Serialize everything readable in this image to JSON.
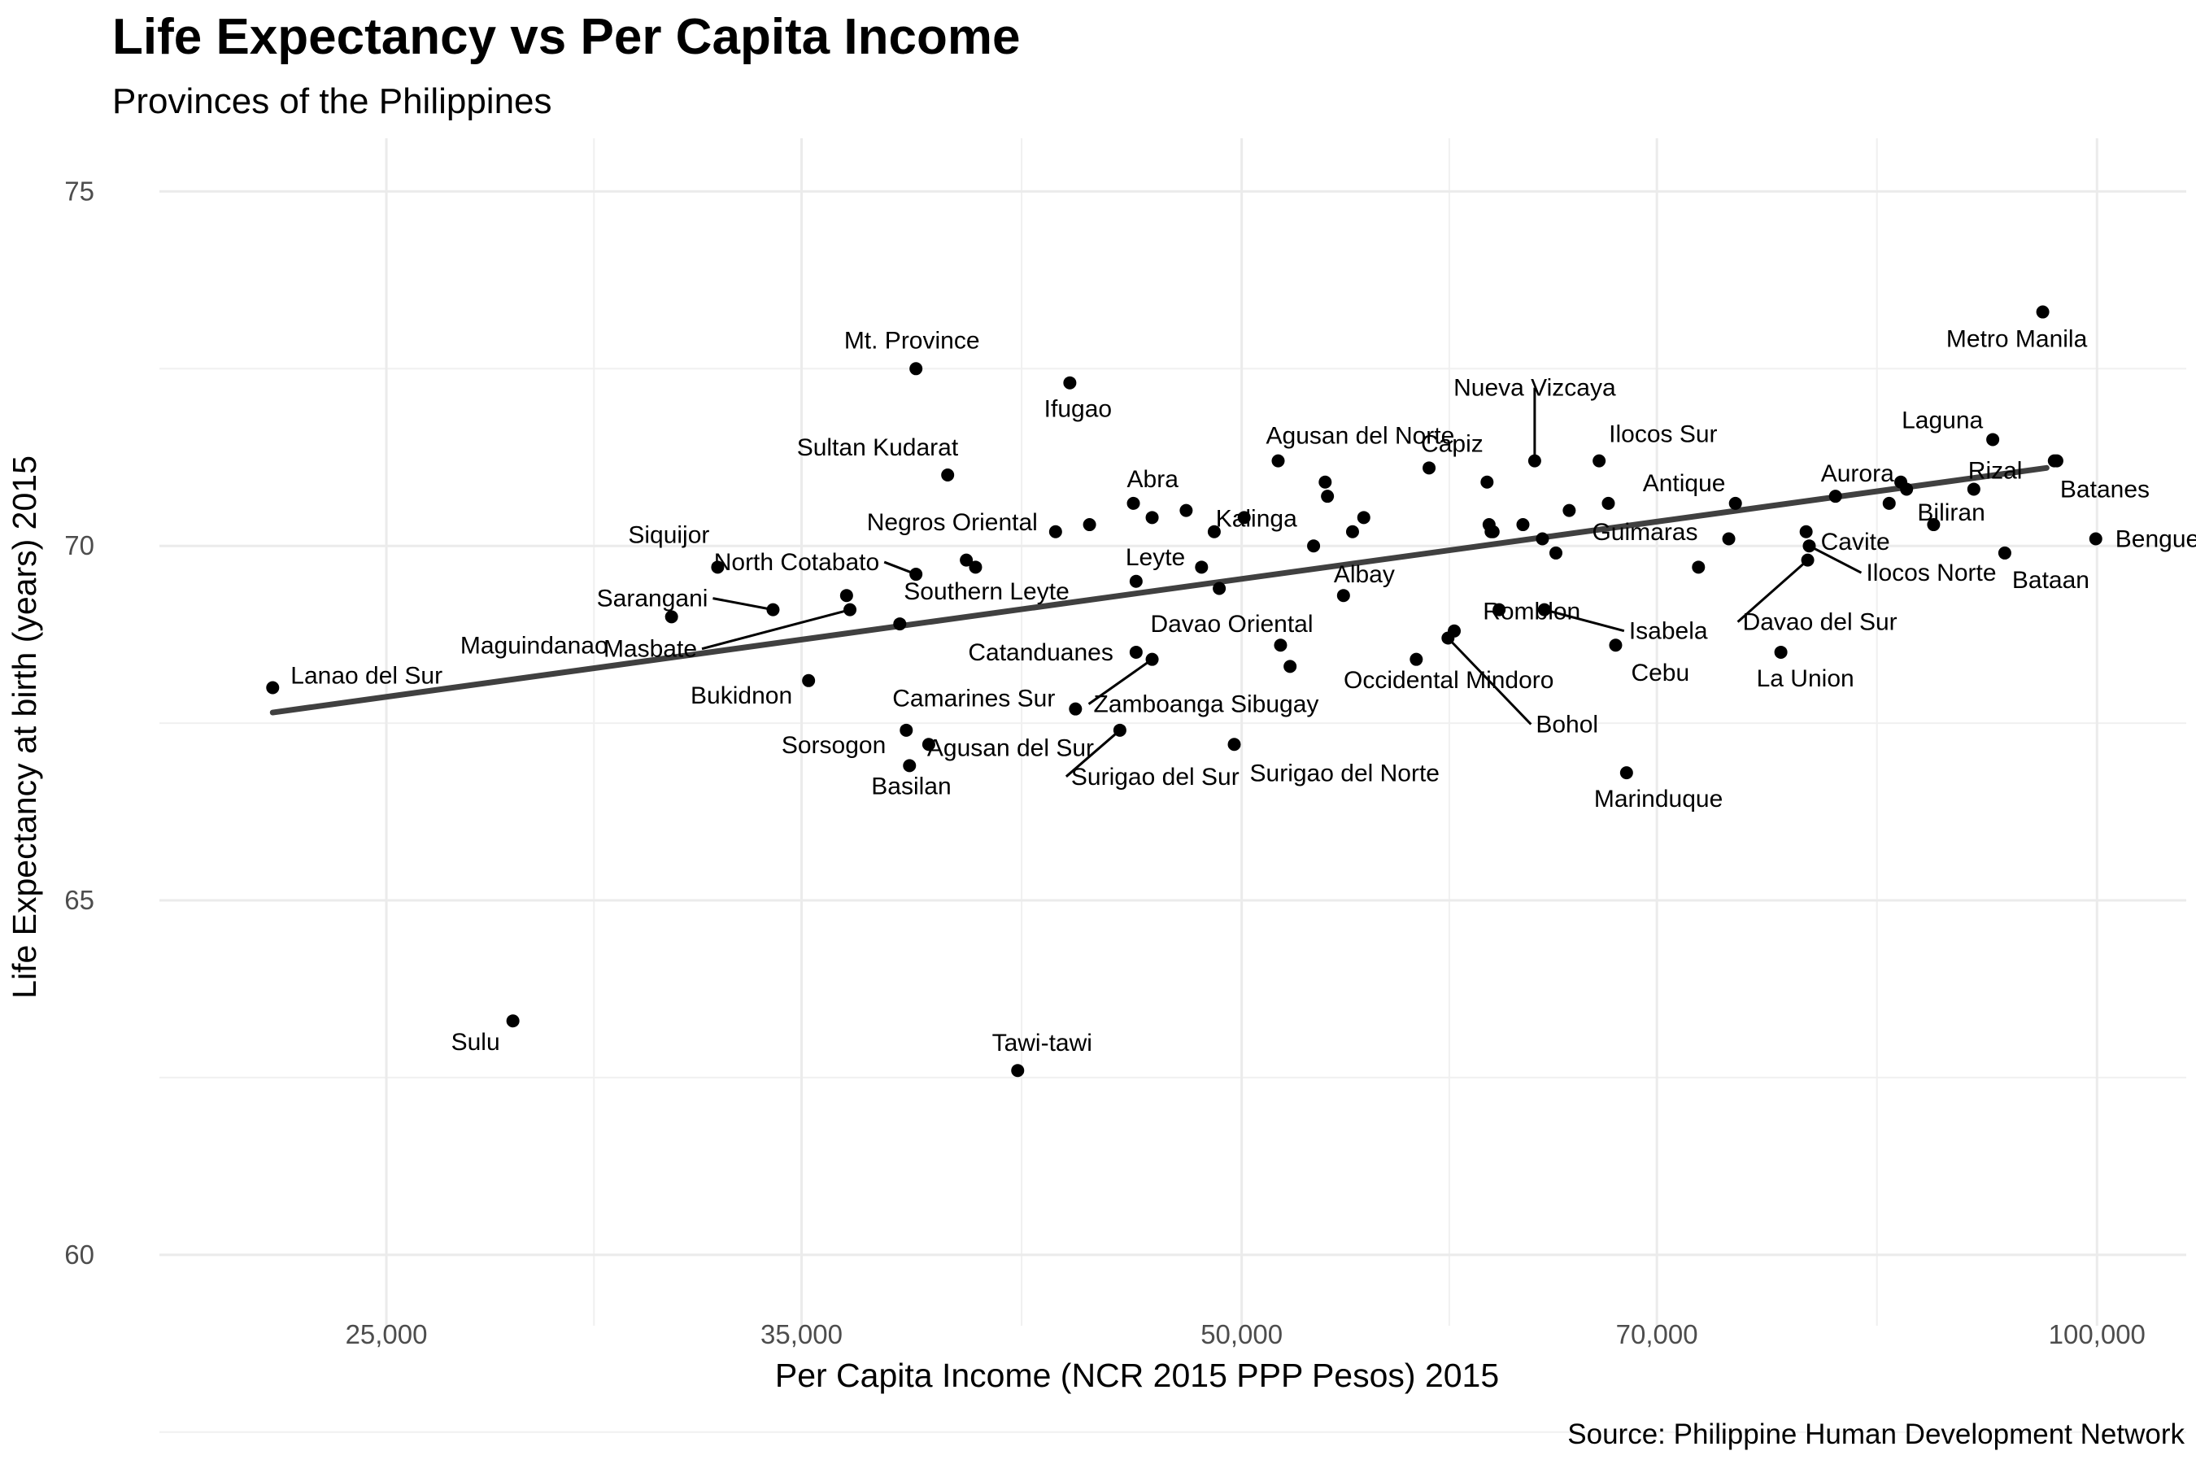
{
  "title": "Life Expectancy vs Per Capita Income",
  "subtitle": "Provinces of the Philippines",
  "caption": "Source: Philippine Human Development Network",
  "chart_data": {
    "type": "scatter",
    "title": "Life Expectancy vs Per Capita Income",
    "subtitle": "Provinces of the Philippines",
    "xlabel": "Per Capita Income (NCR 2015 PPP Pesos) 2015",
    "ylabel": "Life Expectancy at birth (years) 2015",
    "x_scale": "log10",
    "xlim": [
      20800,
      107500
    ],
    "ylim": [
      59.0,
      75.75
    ],
    "x_ticks": [
      25000,
      35000,
      50000,
      70000,
      100000
    ],
    "x_tick_labels": [
      "25,000",
      "35,000",
      "50,000",
      "70,000",
      "100,000"
    ],
    "y_ticks": [
      60,
      65,
      70,
      75
    ],
    "y_tick_labels": [
      "60",
      "65",
      "70",
      "75"
    ],
    "grid": true,
    "legend": "none",
    "trend_line": {
      "x": [
        22800,
        96000
      ],
      "y": [
        67.65,
        71.1
      ],
      "color": "#404040"
    },
    "point_color": "#000000",
    "points": [
      {
        "name": "Lanao del Sur",
        "x": 22800,
        "y": 68.0,
        "label": "Lanao del Sur"
      },
      {
        "name": "Sulu",
        "x": 27700,
        "y": 63.3,
        "label": "Sulu"
      },
      {
        "name": "Maguindanao",
        "x": 31500,
        "y": 69.0,
        "label": "Maguindanao"
      },
      {
        "name": "Siquijor",
        "x": 32700,
        "y": 69.7,
        "label": "Siquijor"
      },
      {
        "name": "Sarangani",
        "x": 34200,
        "y": 69.1,
        "label": "Sarangani"
      },
      {
        "name": "Bukidnon",
        "x": 35200,
        "y": 68.1,
        "label": "Bukidnon"
      },
      {
        "name": "Masbate",
        "x": 36400,
        "y": 69.1,
        "label": "Masbate"
      },
      {
        "name": "Unlabeled",
        "x": 36300,
        "y": 69.3,
        "label": ""
      },
      {
        "name": "Southern Leyte",
        "x": 37900,
        "y": 68.9,
        "label": "Southern Leyte"
      },
      {
        "name": "Sorsogon",
        "x": 38100,
        "y": 67.4,
        "label": "Sorsogon"
      },
      {
        "name": "Basilan",
        "x": 38200,
        "y": 66.9,
        "label": "Basilan"
      },
      {
        "name": "Agusan del Sur",
        "x": 38800,
        "y": 67.2,
        "label": "Agusan del Sur"
      },
      {
        "name": "North Cotabato",
        "x": 38400,
        "y": 69.6,
        "label": "North Cotabato"
      },
      {
        "name": "Mt. Province",
        "x": 38400,
        "y": 72.5,
        "label": "Mt. Province"
      },
      {
        "name": "Sultan Kudarat",
        "x": 39400,
        "y": 71.0,
        "label": "Sultan Kudarat"
      },
      {
        "name": "Unlabeled",
        "x": 40000,
        "y": 69.8,
        "label": ""
      },
      {
        "name": "Unlabeled",
        "x": 40300,
        "y": 69.7,
        "label": ""
      },
      {
        "name": "Tawi-tawi",
        "x": 41700,
        "y": 62.6,
        "label": "Tawi-tawi"
      },
      {
        "name": "Negros Oriental",
        "x": 43000,
        "y": 70.2,
        "label": "Negros Oriental"
      },
      {
        "name": "Ifugao",
        "x": 43500,
        "y": 72.3,
        "label": "Ifugao"
      },
      {
        "name": "Camarines Sur",
        "x": 43700,
        "y": 67.7,
        "label": "Camarines Sur"
      },
      {
        "name": "Unlabeled",
        "x": 44200,
        "y": 70.3,
        "label": ""
      },
      {
        "name": "Surigao del Sur",
        "x": 45300,
        "y": 67.4,
        "label": "Surigao del Sur"
      },
      {
        "name": "Abra",
        "x": 45800,
        "y": 70.6,
        "label": "Abra"
      },
      {
        "name": "Leyte",
        "x": 45900,
        "y": 69.5,
        "label": "Leyte"
      },
      {
        "name": "Catanduanes",
        "x": 45900,
        "y": 68.5,
        "label": "Catanduanes"
      },
      {
        "name": "Zamboanga Sibugay",
        "x": 46500,
        "y": 68.4,
        "label": "Zamboanga Sibugay"
      },
      {
        "name": "Unlabeled",
        "x": 46500,
        "y": 70.4,
        "label": ""
      },
      {
        "name": "Unlabeled",
        "x": 47800,
        "y": 70.5,
        "label": ""
      },
      {
        "name": "Unlabeled",
        "x": 48400,
        "y": 69.7,
        "label": ""
      },
      {
        "name": "Unlabeled",
        "x": 48900,
        "y": 70.2,
        "label": ""
      },
      {
        "name": "Unlabeled",
        "x": 49100,
        "y": 69.4,
        "label": ""
      },
      {
        "name": "Surigao del Norte",
        "x": 49700,
        "y": 67.2,
        "label": "Surigao del Norte"
      },
      {
        "name": "Kalinga",
        "x": 50100,
        "y": 70.4,
        "label": "Kalinga"
      },
      {
        "name": "Agusan del Norte",
        "x": 51500,
        "y": 71.2,
        "label": "Agusan del Norte"
      },
      {
        "name": "Davao Oriental",
        "x": 51600,
        "y": 68.6,
        "label": "Davao Oriental"
      },
      {
        "name": "Unlabeled",
        "x": 52000,
        "y": 68.3,
        "label": ""
      },
      {
        "name": "Unlabeled",
        "x": 53000,
        "y": 70.0,
        "label": ""
      },
      {
        "name": "Unlabeled",
        "x": 53500,
        "y": 70.9,
        "label": ""
      },
      {
        "name": "Unlabeled",
        "x": 53600,
        "y": 70.7,
        "label": ""
      },
      {
        "name": "Albay",
        "x": 54300,
        "y": 69.3,
        "label": "Albay"
      },
      {
        "name": "Unlabeled",
        "x": 54700,
        "y": 70.2,
        "label": ""
      },
      {
        "name": "Unlabeled",
        "x": 55200,
        "y": 70.4,
        "label": ""
      },
      {
        "name": "Unlabeled",
        "x": 57600,
        "y": 68.4,
        "label": ""
      },
      {
        "name": "Capiz",
        "x": 58200,
        "y": 71.1,
        "label": "Capiz"
      },
      {
        "name": "Occidental Mindoro",
        "x": 59400,
        "y": 68.8,
        "label": "Occidental Mindoro"
      },
      {
        "name": "Bohol",
        "x": 59100,
        "y": 68.7,
        "label": "Bohol"
      },
      {
        "name": "Unlabeled",
        "x": 61000,
        "y": 70.9,
        "label": ""
      },
      {
        "name": "Unlabeled",
        "x": 61100,
        "y": 70.3,
        "label": ""
      },
      {
        "name": "Unlabeled",
        "x": 61200,
        "y": 70.2,
        "label": ""
      },
      {
        "name": "Unlabeled",
        "x": 61300,
        "y": 70.2,
        "label": ""
      },
      {
        "name": "Romblon",
        "x": 61600,
        "y": 69.1,
        "label": "Romblon"
      },
      {
        "name": "Unlabeled",
        "x": 62800,
        "y": 70.3,
        "label": ""
      },
      {
        "name": "Nueva Vizcaya",
        "x": 63400,
        "y": 71.2,
        "label": "Nueva Vizcaya"
      },
      {
        "name": "Unlabeled",
        "x": 63800,
        "y": 70.1,
        "label": ""
      },
      {
        "name": "Isabela",
        "x": 63900,
        "y": 69.1,
        "label": "Isabela"
      },
      {
        "name": "Unlabeled",
        "x": 64500,
        "y": 69.9,
        "label": ""
      },
      {
        "name": "Unlabeled",
        "x": 65200,
        "y": 70.5,
        "label": ""
      },
      {
        "name": "Ilocos Sur",
        "x": 66800,
        "y": 71.2,
        "label": "Ilocos Sur"
      },
      {
        "name": "Guimaras",
        "x": 67300,
        "y": 70.6,
        "label": "Guimaras"
      },
      {
        "name": "Cebu",
        "x": 67700,
        "y": 68.6,
        "label": "Cebu"
      },
      {
        "name": "Marinduque",
        "x": 68300,
        "y": 66.8,
        "label": "Marinduque"
      },
      {
        "name": "Unlabeled",
        "x": 72400,
        "y": 69.7,
        "label": ""
      },
      {
        "name": "Unlabeled",
        "x": 74200,
        "y": 70.1,
        "label": ""
      },
      {
        "name": "Antique",
        "x": 74600,
        "y": 70.6,
        "label": "Antique"
      },
      {
        "name": "La Union",
        "x": 77400,
        "y": 68.5,
        "label": "La Union"
      },
      {
        "name": "Cavite",
        "x": 79000,
        "y": 70.2,
        "label": "Cavite"
      },
      {
        "name": "Ilocos Norte",
        "x": 79200,
        "y": 70.0,
        "label": "Ilocos Norte"
      },
      {
        "name": "Davao del Sur",
        "x": 79100,
        "y": 69.8,
        "label": "Davao del Sur"
      },
      {
        "name": "Aurora",
        "x": 80900,
        "y": 70.7,
        "label": "Aurora"
      },
      {
        "name": "Unlabeled",
        "x": 84500,
        "y": 70.6,
        "label": ""
      },
      {
        "name": "Unlabeled",
        "x": 85300,
        "y": 70.9,
        "label": ""
      },
      {
        "name": "Unlabeled",
        "x": 85700,
        "y": 70.8,
        "label": ""
      },
      {
        "name": "Biliran",
        "x": 87600,
        "y": 70.3,
        "label": "Biliran"
      },
      {
        "name": "Unlabeled",
        "x": 90500,
        "y": 70.8,
        "label": ""
      },
      {
        "name": "Laguna",
        "x": 91900,
        "y": 71.5,
        "label": "Laguna"
      },
      {
        "name": "Bataan",
        "x": 92800,
        "y": 69.9,
        "label": "Bataan"
      },
      {
        "name": "Metro Manila",
        "x": 95700,
        "y": 73.3,
        "label": "Metro Manila"
      },
      {
        "name": "Rizal",
        "x": 96600,
        "y": 71.2,
        "label": "Rizal"
      },
      {
        "name": "Batanes",
        "x": 96800,
        "y": 71.2,
        "label": "Batanes"
      },
      {
        "name": "Benguet",
        "x": 99900,
        "y": 70.1,
        "label": "Benguet"
      }
    ]
  }
}
